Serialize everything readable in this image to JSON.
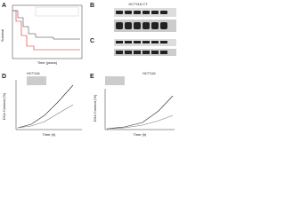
{
  "panels": {
    "a": {
      "label": "A",
      "y_label": "Survival",
      "x_label": "Time (years)"
    },
    "b": {
      "label": "B",
      "header": "HCT116 CT"
    },
    "c": {
      "label": "C"
    },
    "d": {
      "label": "D",
      "header": "HCT116",
      "y_label": "DNA Content (%)",
      "x_label": "Time (h)"
    },
    "e": {
      "label": "E",
      "header": "HCT116",
      "y_label": "DNA Content (%)",
      "x_label": "Time (h)"
    }
  }
}
